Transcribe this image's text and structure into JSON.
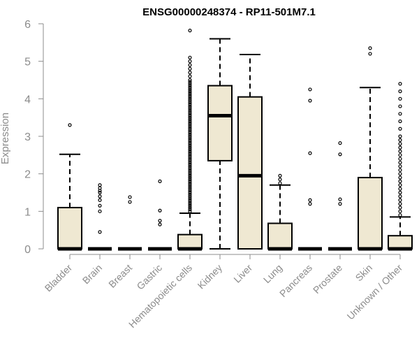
{
  "chart_data": {
    "type": "boxplot",
    "title": "ENSG00000248374 - RP11-501M7.1",
    "xlabel": "",
    "ylabel": "Expression",
    "ylim": [
      0,
      6
    ],
    "yticks": [
      0,
      1,
      2,
      3,
      4,
      5,
      6
    ],
    "grid": false,
    "legend": "none",
    "box_fill": "#efe8d2",
    "box_stroke": "#000000",
    "axis_color": "#8c8c8c",
    "categories": [
      "Bladder",
      "Brain",
      "Breast",
      "Gastric",
      "Hematopoietic cells",
      "Kidney",
      "Liver",
      "Lung",
      "Pancreas",
      "Prostate",
      "Skin",
      "Unknown / Other"
    ],
    "boxes": [
      {
        "category": "Bladder",
        "whisker_low": 0,
        "q1": 0,
        "median": 0,
        "q3": 1.1,
        "whisker_high": 2.52,
        "outliers": [
          3.3
        ]
      },
      {
        "category": "Brain",
        "whisker_low": 0,
        "q1": 0,
        "median": 0,
        "q3": 0,
        "whisker_high": 0,
        "outliers": [
          0.45,
          1.0,
          1.15,
          1.3,
          1.4,
          1.5,
          1.55,
          1.62,
          1.7
        ]
      },
      {
        "category": "Breast",
        "whisker_low": 0,
        "q1": 0,
        "median": 0,
        "q3": 0,
        "whisker_high": 0,
        "outliers": [
          1.25,
          1.38
        ]
      },
      {
        "category": "Gastric",
        "whisker_low": 0,
        "q1": 0,
        "median": 0,
        "q3": 0,
        "whisker_high": 0,
        "outliers": [
          0.65,
          0.75,
          1.02,
          1.8
        ]
      },
      {
        "category": "Hematopoietic cells",
        "whisker_low": 0,
        "q1": 0,
        "median": 0,
        "q3": 0.38,
        "whisker_high": 0.95,
        "outliers": [
          1.0,
          1.05,
          1.1,
          1.15,
          1.2,
          1.25,
          1.3,
          1.35,
          1.4,
          1.45,
          1.5,
          1.55,
          1.6,
          1.65,
          1.7,
          1.75,
          1.8,
          1.85,
          1.9,
          1.95,
          2.0,
          2.05,
          2.1,
          2.15,
          2.2,
          2.25,
          2.3,
          2.35,
          2.4,
          2.45,
          2.5,
          2.55,
          2.6,
          2.65,
          2.7,
          2.75,
          2.8,
          2.85,
          2.9,
          2.95,
          3.0,
          3.05,
          3.1,
          3.15,
          3.2,
          3.25,
          3.3,
          3.35,
          3.4,
          3.45,
          3.5,
          3.55,
          3.6,
          3.65,
          3.7,
          3.75,
          3.8,
          3.85,
          3.9,
          3.95,
          4.0,
          4.05,
          4.1,
          4.15,
          4.2,
          4.25,
          4.3,
          4.35,
          4.4,
          4.45,
          4.5,
          4.6,
          4.7,
          4.8,
          4.9,
          5.0,
          5.1,
          5.82
        ]
      },
      {
        "category": "Kidney",
        "whisker_low": 0,
        "q1": 2.35,
        "median": 3.55,
        "q3": 4.35,
        "whisker_high": 5.6,
        "outliers": []
      },
      {
        "category": "Liver",
        "whisker_low": 0,
        "q1": 0,
        "median": 1.95,
        "q3": 4.05,
        "whisker_high": 5.18,
        "outliers": []
      },
      {
        "category": "Lung",
        "whisker_low": 0,
        "q1": 0,
        "median": 0,
        "q3": 0.68,
        "whisker_high": 1.7,
        "outliers": [
          1.75,
          1.85,
          1.95
        ]
      },
      {
        "category": "Pancreas",
        "whisker_low": 0,
        "q1": 0,
        "median": 0,
        "q3": 0,
        "whisker_high": 0,
        "outliers": [
          1.2,
          1.3,
          2.55,
          3.95,
          4.25
        ]
      },
      {
        "category": "Prostate",
        "whisker_low": 0,
        "q1": 0,
        "median": 0,
        "q3": 0,
        "whisker_high": 0,
        "outliers": [
          1.2,
          1.32,
          2.52,
          2.82
        ]
      },
      {
        "category": "Skin",
        "whisker_low": 0,
        "q1": 0,
        "median": 0,
        "q3": 1.9,
        "whisker_high": 4.3,
        "outliers": [
          5.2,
          5.35
        ]
      },
      {
        "category": "Unknown / Other",
        "whisker_low": 0,
        "q1": 0,
        "median": 0,
        "q3": 0.35,
        "whisker_high": 0.85,
        "outliers": [
          0.9,
          1.0,
          1.1,
          1.2,
          1.3,
          1.4,
          1.5,
          1.6,
          1.7,
          1.8,
          1.9,
          2.0,
          2.1,
          2.2,
          2.3,
          2.4,
          2.5,
          2.6,
          2.7,
          2.8,
          2.9,
          3.0,
          3.2,
          3.4,
          3.6,
          3.8,
          4.0,
          4.2,
          4.4
        ]
      }
    ]
  }
}
